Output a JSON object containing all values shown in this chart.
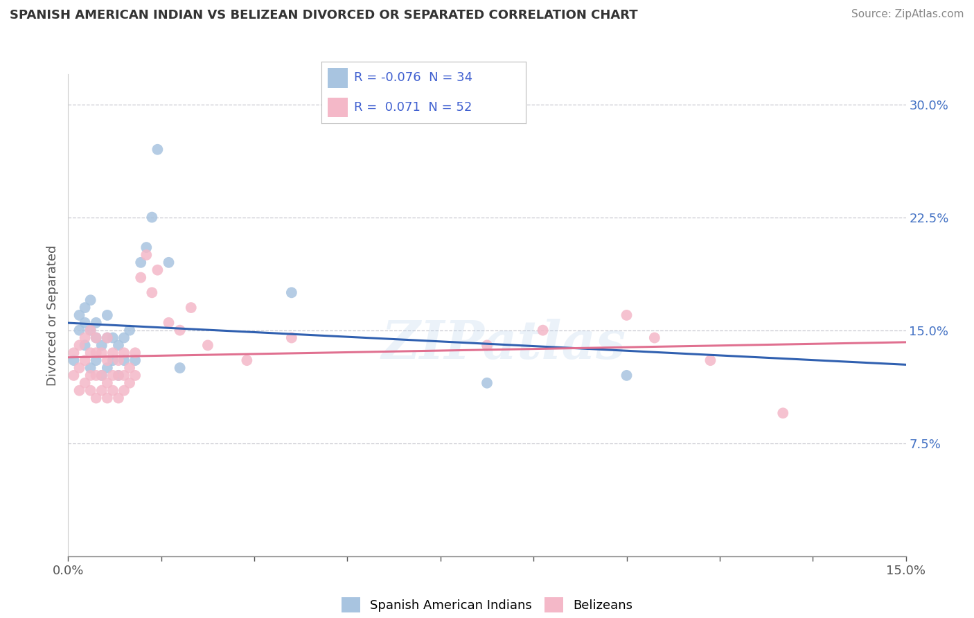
{
  "title": "SPANISH AMERICAN INDIAN VS BELIZEAN DIVORCED OR SEPARATED CORRELATION CHART",
  "source": "Source: ZipAtlas.com",
  "ylabel": "Divorced or Separated",
  "xlim": [
    0.0,
    0.15
  ],
  "ylim": [
    0.0,
    0.32
  ],
  "yticks": [
    0.075,
    0.15,
    0.225,
    0.3
  ],
  "ytick_labels": [
    "7.5%",
    "15.0%",
    "22.5%",
    "30.0%"
  ],
  "xticks": [
    0.0,
    0.0167,
    0.0333,
    0.05,
    0.0667,
    0.0833,
    0.1,
    0.1167,
    0.1333,
    0.15
  ],
  "xtick_labels_sparse": {
    "0.0": "0.0%",
    "0.15": "15.0%"
  },
  "legend_labels": [
    "Spanish American Indians",
    "Belizeans"
  ],
  "blue_R": "-0.076",
  "blue_N": "34",
  "pink_R": "0.071",
  "pink_N": "52",
  "blue_color": "#a8c4e0",
  "pink_color": "#f4b8c8",
  "blue_line_color": "#3060b0",
  "pink_line_color": "#e07090",
  "watermark": "ZIPatlas",
  "blue_points_x": [
    0.001,
    0.002,
    0.002,
    0.003,
    0.003,
    0.003,
    0.004,
    0.004,
    0.004,
    0.005,
    0.005,
    0.005,
    0.006,
    0.006,
    0.007,
    0.007,
    0.007,
    0.008,
    0.008,
    0.009,
    0.009,
    0.01,
    0.01,
    0.011,
    0.012,
    0.013,
    0.014,
    0.015,
    0.016,
    0.018,
    0.02,
    0.04,
    0.075,
    0.1
  ],
  "blue_points_y": [
    0.13,
    0.15,
    0.16,
    0.14,
    0.155,
    0.165,
    0.125,
    0.15,
    0.17,
    0.13,
    0.145,
    0.155,
    0.12,
    0.14,
    0.125,
    0.145,
    0.16,
    0.13,
    0.145,
    0.12,
    0.14,
    0.13,
    0.145,
    0.15,
    0.13,
    0.195,
    0.205,
    0.225,
    0.27,
    0.195,
    0.125,
    0.175,
    0.115,
    0.12
  ],
  "pink_points_x": [
    0.001,
    0.001,
    0.002,
    0.002,
    0.002,
    0.003,
    0.003,
    0.003,
    0.004,
    0.004,
    0.004,
    0.004,
    0.005,
    0.005,
    0.005,
    0.005,
    0.006,
    0.006,
    0.006,
    0.007,
    0.007,
    0.007,
    0.007,
    0.008,
    0.008,
    0.008,
    0.009,
    0.009,
    0.009,
    0.01,
    0.01,
    0.01,
    0.011,
    0.011,
    0.012,
    0.012,
    0.013,
    0.014,
    0.015,
    0.016,
    0.018,
    0.02,
    0.022,
    0.025,
    0.032,
    0.04,
    0.075,
    0.085,
    0.1,
    0.105,
    0.115,
    0.128
  ],
  "pink_points_y": [
    0.12,
    0.135,
    0.11,
    0.125,
    0.14,
    0.115,
    0.13,
    0.145,
    0.11,
    0.12,
    0.135,
    0.15,
    0.105,
    0.12,
    0.135,
    0.145,
    0.11,
    0.12,
    0.135,
    0.105,
    0.115,
    0.13,
    0.145,
    0.11,
    0.12,
    0.135,
    0.105,
    0.12,
    0.13,
    0.11,
    0.12,
    0.135,
    0.115,
    0.125,
    0.12,
    0.135,
    0.185,
    0.2,
    0.175,
    0.19,
    0.155,
    0.15,
    0.165,
    0.14,
    0.13,
    0.145,
    0.14,
    0.15,
    0.16,
    0.145,
    0.13,
    0.095
  ],
  "background_color": "#ffffff",
  "grid_color": "#c8c8d0"
}
